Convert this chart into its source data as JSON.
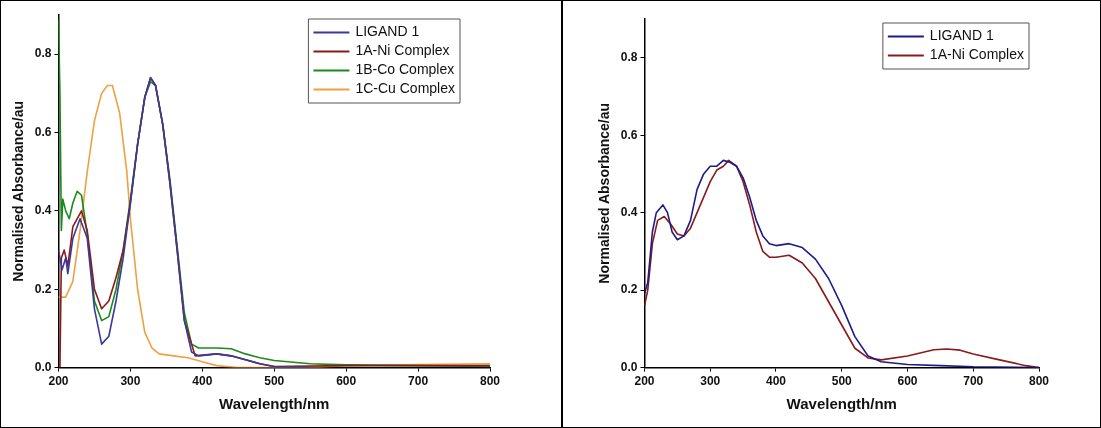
{
  "chart_data": [
    {
      "type": "line",
      "xlabel": "Wavelength/nm",
      "ylabel": "Normalised Absorbance/au",
      "xlim": [
        200,
        800
      ],
      "ylim": [
        0,
        0.9
      ],
      "xticks": [
        200,
        300,
        400,
        500,
        600,
        700,
        800
      ],
      "yticks": [
        {
          "value": 0,
          "label": "0.0"
        },
        0.2,
        0.4,
        0.6,
        0.8
      ],
      "legend": "top right",
      "grid": false,
      "marker": "none",
      "line_style": "solid",
      "series": [
        {
          "name": "LIGAND 1",
          "color": "#3a3a9a",
          "x": [
            200,
            205,
            210,
            213,
            220,
            230,
            240,
            250,
            260,
            270,
            280,
            290,
            300,
            310,
            320,
            328,
            335,
            345,
            355,
            365,
            375,
            385,
            395,
            420,
            440,
            460,
            480,
            500,
            550
          ],
          "values": [
            0.3,
            0.25,
            0.28,
            0.24,
            0.33,
            0.38,
            0.33,
            0.15,
            0.06,
            0.08,
            0.17,
            0.28,
            0.42,
            0.57,
            0.69,
            0.74,
            0.72,
            0.62,
            0.47,
            0.3,
            0.12,
            0.04,
            0.03,
            0.035,
            0.03,
            0.02,
            0.01,
            0.003,
            0
          ]
        },
        {
          "name": "1A-Ni Complex",
          "color": "#8b1a1a",
          "x": [
            202,
            204,
            208,
            213,
            220,
            232,
            240,
            250,
            260,
            270,
            280,
            290,
            300,
            310,
            320,
            328,
            335,
            345,
            355,
            365,
            375,
            390,
            420,
            440,
            480,
            500,
            600,
            800
          ],
          "values": [
            0,
            0.28,
            0.3,
            0.26,
            0.36,
            0.4,
            0.35,
            0.2,
            0.15,
            0.17,
            0.23,
            0.3,
            0.42,
            0.57,
            0.69,
            0.74,
            0.72,
            0.62,
            0.47,
            0.3,
            0.12,
            0.03,
            0.035,
            0.03,
            0.01,
            0.003,
            0.005,
            0.005
          ]
        },
        {
          "name": "1B-Co Complex",
          "color": "#1a8a1a",
          "x": [
            200,
            202,
            204,
            206,
            210,
            215,
            220,
            226,
            232,
            240,
            250,
            260,
            270,
            280,
            290,
            300,
            310,
            320,
            328,
            335,
            345,
            355,
            365,
            375,
            385,
            395,
            420,
            440,
            460,
            480,
            500,
            550,
            600,
            700,
            800
          ],
          "values": [
            0.89,
            0.7,
            0.35,
            0.43,
            0.4,
            0.38,
            0.42,
            0.45,
            0.44,
            0.34,
            0.17,
            0.12,
            0.13,
            0.2,
            0.3,
            0.43,
            0.57,
            0.69,
            0.73,
            0.72,
            0.62,
            0.48,
            0.31,
            0.14,
            0.06,
            0.05,
            0.05,
            0.048,
            0.035,
            0.025,
            0.018,
            0.01,
            0.007,
            0.005,
            0.003
          ]
        },
        {
          "name": "1C-Cu Complex",
          "color": "#f0a040",
          "x": [
            200,
            210,
            220,
            230,
            240,
            250,
            260,
            268,
            275,
            285,
            295,
            300,
            310,
            320,
            330,
            340,
            360,
            380,
            400,
            420,
            450,
            550,
            600,
            700,
            800
          ],
          "values": [
            0.18,
            0.18,
            0.22,
            0.35,
            0.5,
            0.63,
            0.7,
            0.72,
            0.72,
            0.65,
            0.5,
            0.38,
            0.2,
            0.09,
            0.05,
            0.035,
            0.03,
            0.025,
            0.015,
            0.005,
            0,
            0,
            0.005,
            0.008,
            0.01
          ]
        }
      ]
    },
    {
      "type": "line",
      "xlabel": "Wavelength/nm",
      "ylabel": "Normalised Absorbance/au",
      "xlim": [
        200,
        800
      ],
      "ylim": [
        0,
        0.9
      ],
      "xticks": [
        200,
        300,
        400,
        500,
        600,
        700,
        800
      ],
      "yticks": [
        {
          "value": 0,
          "label": "0.0"
        },
        0.2,
        0.4,
        0.6,
        0.8
      ],
      "legend": "top right",
      "grid": false,
      "marker": "none",
      "line_style": "solid",
      "series": [
        {
          "name": "LIGAND 1",
          "color": "#1c1c8c",
          "x": [
            200,
            205,
            212,
            218,
            228,
            235,
            242,
            250,
            260,
            270,
            280,
            290,
            300,
            310,
            320,
            330,
            340,
            350,
            360,
            370,
            380,
            390,
            400,
            420,
            440,
            460,
            480,
            500,
            520,
            540,
            560,
            600,
            650,
            700,
            800
          ],
          "values": [
            0.19,
            0.22,
            0.35,
            0.4,
            0.42,
            0.4,
            0.35,
            0.33,
            0.34,
            0.38,
            0.46,
            0.5,
            0.52,
            0.52,
            0.535,
            0.53,
            0.52,
            0.49,
            0.44,
            0.38,
            0.34,
            0.32,
            0.315,
            0.32,
            0.31,
            0.28,
            0.23,
            0.16,
            0.08,
            0.03,
            0.015,
            0.008,
            0.005,
            0.002,
            0
          ]
        },
        {
          "name": "1A-Ni Complex",
          "color": "#8b1a1a",
          "x": [
            200,
            205,
            212,
            220,
            230,
            240,
            250,
            260,
            270,
            280,
            290,
            300,
            310,
            320,
            328,
            340,
            350,
            360,
            370,
            380,
            390,
            400,
            420,
            440,
            460,
            480,
            500,
            520,
            540,
            560,
            600,
            640,
            660,
            680,
            700,
            740,
            780,
            800
          ],
          "values": [
            0.16,
            0.2,
            0.32,
            0.38,
            0.39,
            0.37,
            0.345,
            0.34,
            0.36,
            0.4,
            0.44,
            0.48,
            0.51,
            0.52,
            0.535,
            0.52,
            0.48,
            0.42,
            0.35,
            0.3,
            0.285,
            0.285,
            0.29,
            0.27,
            0.23,
            0.17,
            0.11,
            0.05,
            0.025,
            0.02,
            0.03,
            0.046,
            0.048,
            0.045,
            0.035,
            0.02,
            0.005,
            0
          ]
        }
      ]
    }
  ]
}
